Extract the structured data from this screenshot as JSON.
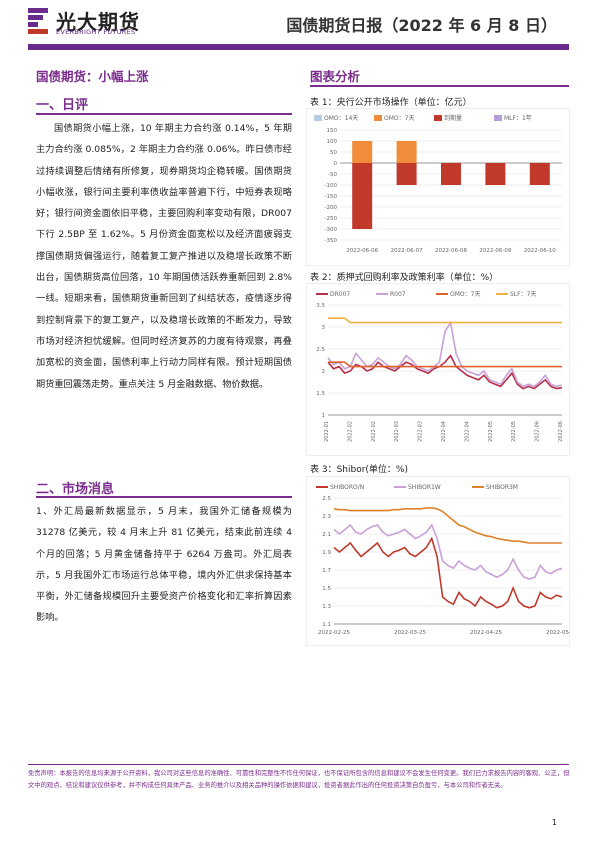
{
  "header": {
    "logo_cn": "光大期货",
    "logo_en": "EVERBRIGHT FUTURES",
    "report_title": "国债期货日报（2022 年 6 月 8 日）"
  },
  "left": {
    "title": "国债期货：小幅上涨",
    "sec1_heading": "一、日评",
    "sec1_text": "国债期货小幅上涨，10 年期主力合约涨 0.14%，5 年期主力合约涨 0.085%，2 年期主力合约涨 0.06%。昨日债市经过持续调整后情绪有所修复，现券期货均企稳转暖。国债期货小幅收涨，银行间主要利率债收益率普遍下行，中短券表现略好；银行间资金面依旧平稳，主要回购利率变动有限，DR007 下行 2.5BP 至 1.62%。5 月份资金面宽松以及经济面疲弱支撑国债期货偏强运行，随着复工复产推进以及稳增长政策不断出台，国债期货高位回落，10 年期国债活跃券重新回到 2.8%一线。短期来看，国债期货重新回到了纠结状态，疫情逐步得到控制背景下的复工复产，以及稳增长政策的不断发力，导致市场对经济担忧缓解。但同时经济复苏的力度有待观察，再叠加宽松的资金面，国债利率上行动力同样有限。预计短期国债期货重回震荡走势。重点关注 5 月金融数据、物价数据。",
    "sec2_heading": "二、市场消息",
    "sec2_text": "1、外汇局最新数据显示，5 月末，我国外汇储备规模为 31278 亿美元，较 4 月末上升 81 亿美元，结束此前连续 4 个月的回落；5 月黄金储备持平于 6264 万盎司。外汇局表示，5 月我国外汇市场运行总体平稳，境内外汇供求保持基本平衡，外汇储备规模回升主要受资产价格变化和汇率折算因素影响。"
  },
  "right": {
    "title": "图表分析",
    "chart1_caption": "表 1：央行公开市场操作（单位：亿元）",
    "chart2_caption": "表 2：质押式回购利率及政策利率（单位：%）",
    "chart3_caption": "表 3：Shibor(单位：%)"
  },
  "chart_data": [
    {
      "type": "bar",
      "legend": [
        "OMO：14天",
        "OMO：7天",
        "到期量",
        "MLF：1年"
      ],
      "categories": [
        "2022-06-06",
        "2022-06-07",
        "2022-06-08",
        "2022-06-09",
        "2022-06-10"
      ],
      "series": [
        {
          "name": "OMO：14天",
          "values": [
            0,
            0,
            0,
            0,
            0
          ]
        },
        {
          "name": "OMO：7天",
          "values": [
            100,
            100,
            0,
            0,
            0
          ]
        },
        {
          "name": "到期量",
          "values": [
            -300,
            -100,
            -100,
            -100,
            -100
          ]
        },
        {
          "name": "MLF：1年",
          "values": [
            0,
            0,
            0,
            0,
            0
          ]
        }
      ],
      "colors": [
        "#b8cce4",
        "#f08c3a",
        "#c0392b",
        "#b39ddb"
      ],
      "ylim": [
        -350,
        150
      ],
      "yticks": [
        150,
        100,
        50,
        0,
        -50,
        -100,
        -150,
        -200,
        -250,
        -300,
        -350
      ]
    },
    {
      "type": "line",
      "legend": [
        "DR007",
        "R007",
        "OMO：7天",
        "SLF：7天"
      ],
      "yticks": [
        1,
        1.5,
        2,
        2.5,
        3,
        3.5
      ],
      "ylim": [
        1,
        3.5
      ],
      "xticks": [
        "2022-01",
        "2022-02",
        "2022-02",
        "2022-03",
        "2022-03",
        "2022-04",
        "2022-04",
        "2022-05",
        "2022-05",
        "2022-06",
        "2022-06"
      ],
      "series": [
        {
          "name": "DR007",
          "values": [
            2.2,
            2.05,
            2.1,
            1.95,
            2.0,
            2.15,
            2.1,
            2.0,
            2.05,
            2.2,
            2.1,
            2.05,
            2.0,
            2.1,
            2.2,
            2.15,
            2.05,
            2.0,
            1.95,
            2.05,
            2.1,
            2.2,
            2.35,
            2.1,
            2.0,
            1.9,
            1.85,
            1.8,
            1.9,
            1.75,
            1.7,
            1.65,
            1.8,
            1.95,
            1.7,
            1.6,
            1.65,
            1.6,
            1.7,
            1.8,
            1.65,
            1.6,
            1.62
          ]
        },
        {
          "name": "R007",
          "values": [
            2.3,
            2.15,
            2.2,
            2.05,
            2.1,
            2.4,
            2.25,
            2.1,
            2.15,
            2.3,
            2.2,
            2.1,
            2.05,
            2.15,
            2.35,
            2.25,
            2.1,
            2.05,
            2.0,
            2.1,
            2.2,
            2.9,
            3.1,
            2.4,
            2.1,
            2.0,
            1.95,
            1.9,
            2.0,
            1.8,
            1.75,
            1.7,
            1.9,
            2.05,
            1.75,
            1.65,
            1.7,
            1.65,
            1.75,
            1.9,
            1.7,
            1.65,
            1.68
          ]
        },
        {
          "name": "OMO：7天",
          "values": [
            2.2,
            2.2,
            2.2,
            2.2,
            2.1,
            2.1,
            2.1,
            2.1,
            2.1,
            2.1,
            2.1,
            2.1,
            2.1,
            2.1,
            2.1,
            2.1,
            2.1,
            2.1,
            2.1,
            2.1,
            2.1,
            2.1,
            2.1,
            2.1,
            2.1,
            2.1,
            2.1,
            2.1,
            2.1,
            2.1,
            2.1,
            2.1,
            2.1,
            2.1,
            2.1,
            2.1,
            2.1,
            2.1,
            2.1,
            2.1,
            2.1,
            2.1,
            2.1
          ]
        },
        {
          "name": "SLF：7天",
          "values": [
            3.2,
            3.2,
            3.2,
            3.2,
            3.1,
            3.1,
            3.1,
            3.1,
            3.1,
            3.1,
            3.1,
            3.1,
            3.1,
            3.1,
            3.1,
            3.1,
            3.1,
            3.1,
            3.1,
            3.1,
            3.1,
            3.1,
            3.1,
            3.1,
            3.1,
            3.1,
            3.1,
            3.1,
            3.1,
            3.1,
            3.1,
            3.1,
            3.1,
            3.1,
            3.1,
            3.1,
            3.1,
            3.1,
            3.1,
            3.1,
            3.1,
            3.1,
            3.1
          ]
        }
      ],
      "colors": [
        "#b5314a",
        "#c9a0d8",
        "#e0622a",
        "#f0b040"
      ]
    },
    {
      "type": "line",
      "legend": [
        "SHIBORO/N",
        "SHIBOR1W",
        "SHIBOR3M"
      ],
      "yticks": [
        1.1,
        1.3,
        1.5,
        1.7,
        1.9,
        2.1,
        2.3,
        2.5
      ],
      "ylim": [
        1.1,
        2.5
      ],
      "xticks": [
        "2022-02-25",
        "2022-03-25",
        "2022-04-25",
        "2022-05-25"
      ],
      "series": [
        {
          "name": "SHIBORO/N",
          "values": [
            1.95,
            1.9,
            1.95,
            2.0,
            1.92,
            1.85,
            1.9,
            1.95,
            2.0,
            1.9,
            1.85,
            1.9,
            1.92,
            1.95,
            1.88,
            1.85,
            1.9,
            1.95,
            2.05,
            1.85,
            1.4,
            1.35,
            1.32,
            1.45,
            1.38,
            1.35,
            1.3,
            1.4,
            1.35,
            1.32,
            1.28,
            1.3,
            1.35,
            1.5,
            1.35,
            1.3,
            1.28,
            1.3,
            1.45,
            1.4,
            1.38,
            1.42,
            1.4
          ]
        },
        {
          "name": "SHIBOR1W",
          "values": [
            2.15,
            2.1,
            2.15,
            2.2,
            2.12,
            2.1,
            2.15,
            2.18,
            2.2,
            2.12,
            2.08,
            2.1,
            2.12,
            2.15,
            2.1,
            2.05,
            2.08,
            2.12,
            2.2,
            2.05,
            1.8,
            1.75,
            1.72,
            1.8,
            1.75,
            1.72,
            1.7,
            1.75,
            1.68,
            1.65,
            1.62,
            1.65,
            1.7,
            1.82,
            1.7,
            1.62,
            1.6,
            1.62,
            1.75,
            1.68,
            1.66,
            1.7,
            1.72
          ]
        },
        {
          "name": "SHIBOR3M",
          "values": [
            2.38,
            2.37,
            2.37,
            2.36,
            2.36,
            2.36,
            2.36,
            2.36,
            2.36,
            2.36,
            2.36,
            2.37,
            2.37,
            2.38,
            2.38,
            2.38,
            2.38,
            2.39,
            2.39,
            2.38,
            2.35,
            2.3,
            2.25,
            2.2,
            2.18,
            2.15,
            2.12,
            2.1,
            2.08,
            2.07,
            2.05,
            2.04,
            2.03,
            2.02,
            2.02,
            2.01,
            2.0,
            2.0,
            2.0,
            2.0,
            2.0,
            2.0,
            2.0
          ]
        }
      ],
      "colors": [
        "#c0392b",
        "#c9a0d8",
        "#e0822a"
      ]
    }
  ],
  "footer": {
    "disclaimer": "免责声明：本报告的信息均来源于公开资料，我公司对这些信息的准确性、可靠性和完整性不作任何保证，也不保证所包含的信息和建议不会发生任何变更。我们已力求报告内容的客观、公正，但文中的观点、结论和建议仅供参考，并不构成任何具体产品、业务的推介以及相关品种的操作依据和建议，投资者据此作出的任何投资决策自负盈亏，与本公司和作者无关。",
    "page": "1"
  }
}
